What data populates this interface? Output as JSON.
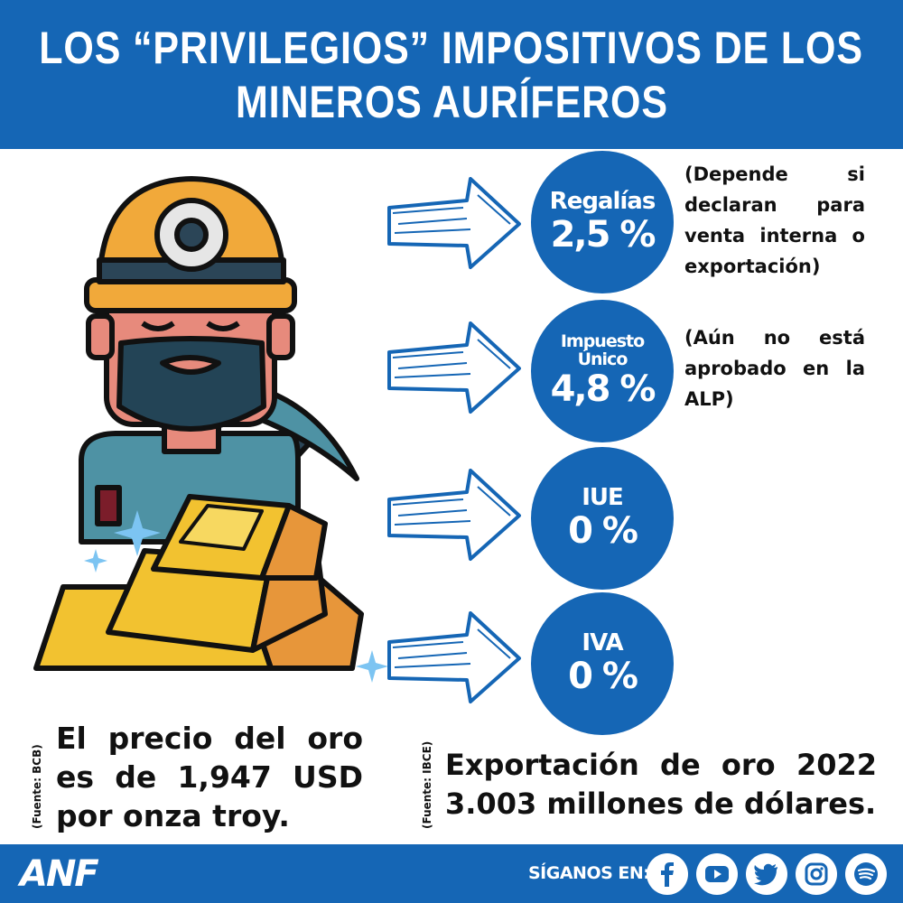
{
  "header": {
    "title_line1": "LOS “PRIVILEGIOS” IMPOSITIVOS DE LOS",
    "title_line2": "MINEROS AURÍFEROS"
  },
  "taxes": [
    {
      "label": "Regalías",
      "value": "2,5 %",
      "note": "(Depende si declaran para venta interna o exportación)"
    },
    {
      "label_line1": "Impuesto",
      "label_line2": "Único",
      "value": "4,8 %",
      "note": "(Aún no está aprobado en la ALP)"
    },
    {
      "label": "IUE",
      "value": "0 %"
    },
    {
      "label": "IVA",
      "value": "0 %"
    }
  ],
  "facts": {
    "price_source": "(Fuente: BCB)",
    "price_text": "El precio del oro es de 1,947 USD por onza troy.",
    "export_source": "(Fuente: IBCE)",
    "export_line1": "Exportación de oro 2022",
    "export_line2": "3.003 millones de dólares."
  },
  "footer": {
    "logo": "ANF",
    "follow": "SÍGANOS EN:",
    "social_icons": [
      "facebook-icon",
      "youtube-icon",
      "twitter-icon",
      "instagram-icon",
      "spotify-icon"
    ]
  },
  "colors": {
    "brand_blue": "#1566b5",
    "helmet": "#f1a93a",
    "gold": "#f2c230",
    "gold_dark": "#e7963a",
    "skin": "#e78a7c",
    "beard": "#234456",
    "shirt": "#4e92a4"
  }
}
